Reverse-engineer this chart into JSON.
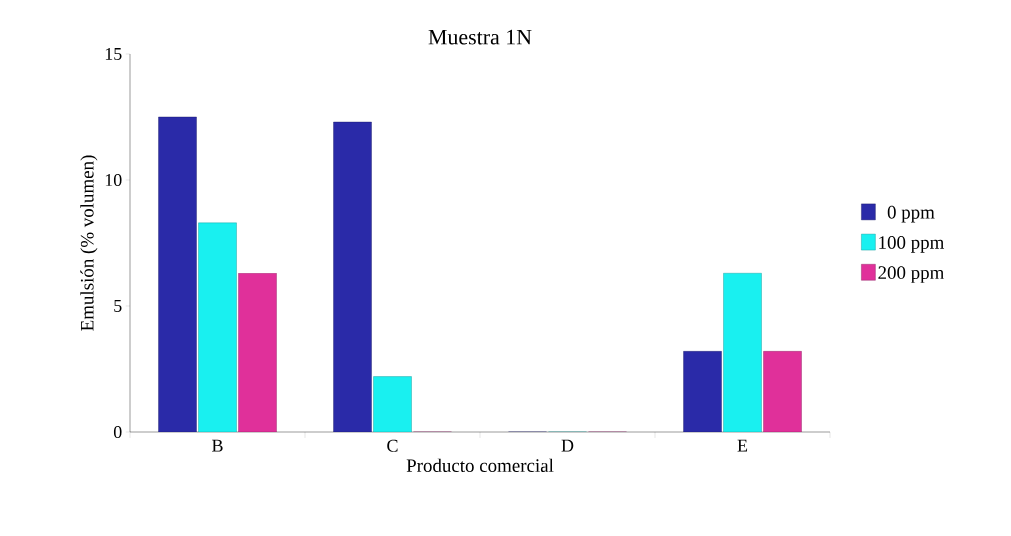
{
  "chart_data": {
    "type": "bar",
    "title": "Muestra 1N",
    "xlabel": "Producto comercial",
    "ylabel": "Emulsión (% volumen)",
    "categories": [
      "B",
      "C",
      "D",
      "E"
    ],
    "series": [
      {
        "name": "0 ppm",
        "color": "#2a2aa8",
        "values": [
          12.5,
          12.3,
          0,
          3.2
        ]
      },
      {
        "name": "100 ppm",
        "color": "#19f0f0",
        "values": [
          8.3,
          2.2,
          0,
          6.3
        ]
      },
      {
        "name": "200 ppm",
        "color": "#e0309a",
        "values": [
          6.3,
          0,
          0,
          3.2
        ]
      }
    ],
    "ylim": [
      0,
      15
    ],
    "yticks": [
      0,
      5,
      10,
      15
    ],
    "legend": "right"
  }
}
